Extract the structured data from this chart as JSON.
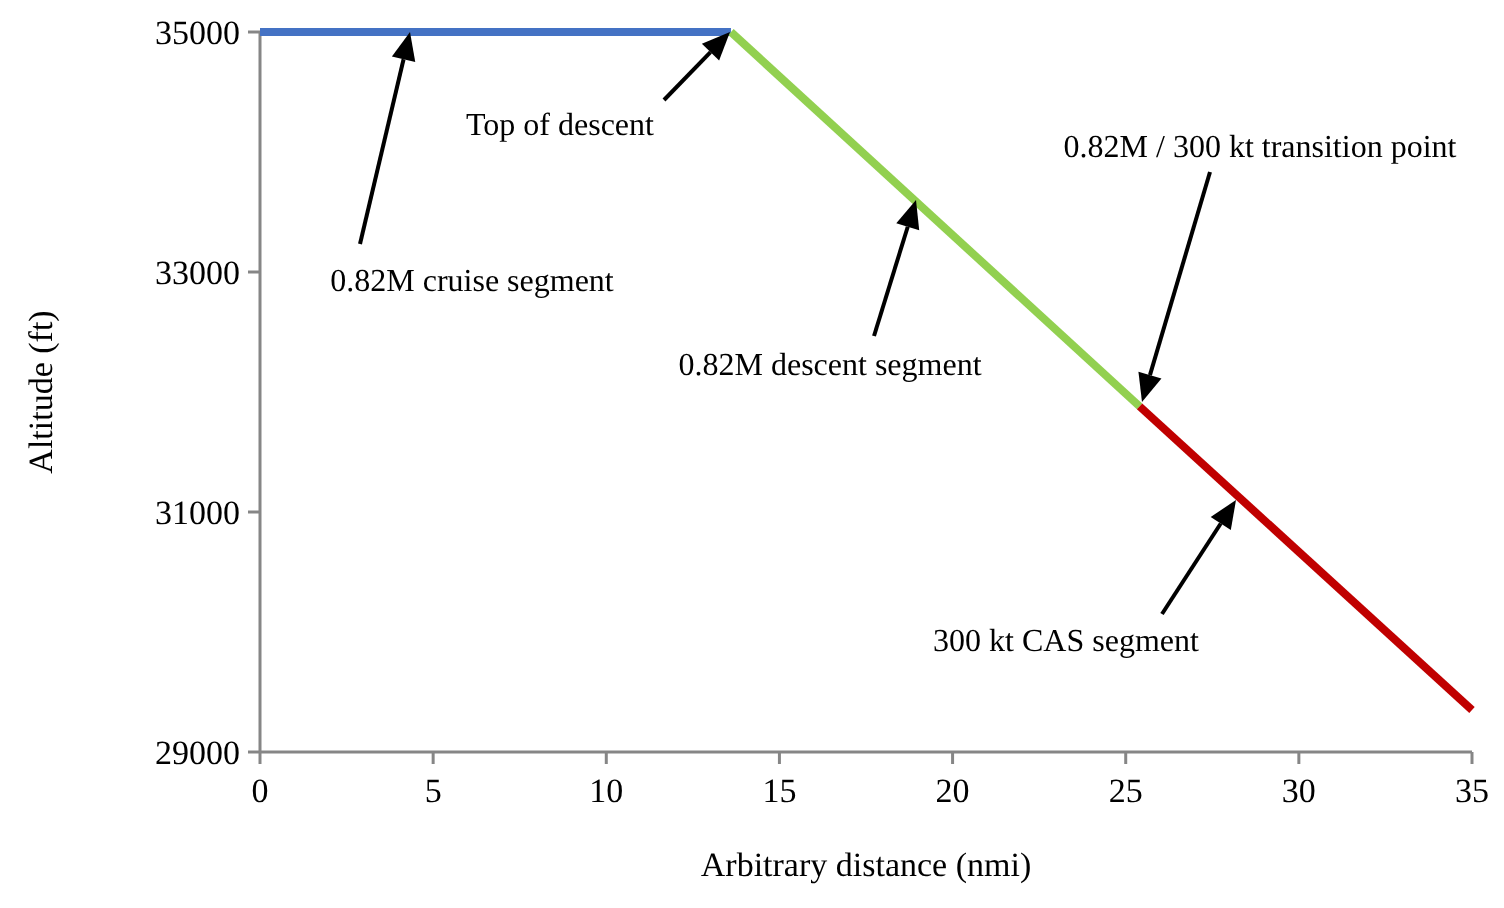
{
  "chart_data": {
    "type": "line",
    "xlabel": "Arbitrary distance (nmi)",
    "ylabel": "Altitude (ft)",
    "xlim": [
      0,
      35
    ],
    "xticks": [
      0,
      5,
      10,
      15,
      20,
      25,
      30,
      35
    ],
    "ylim": [
      29000,
      35000
    ],
    "yticks": [
      29000,
      31000,
      33000,
      35000
    ],
    "grid": false,
    "marker": "none",
    "line_style": "solid",
    "series": [
      {
        "color": "#4472c4",
        "x": [
          0,
          13.6
        ],
        "values": [
          35000,
          35000
        ]
      },
      {
        "color": "#92d050",
        "x": [
          13.6,
          25.4
        ],
        "values": [
          35000,
          31880
        ]
      },
      {
        "color": "#c00000",
        "x": [
          25.4,
          35
        ],
        "values": [
          31880,
          29350
        ]
      }
    ],
    "annotations": [
      "0.82M cruise segment",
      "Top of descent",
      "0.82M descent segment",
      "0.82M / 300 kt transition point",
      "300 kt CAS segment"
    ]
  }
}
